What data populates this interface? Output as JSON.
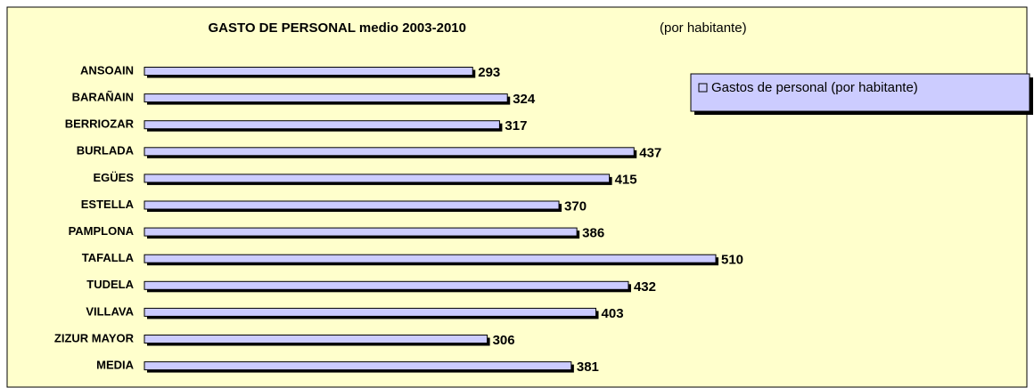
{
  "chart_data": {
    "type": "bar",
    "orientation": "horizontal",
    "title": "GASTO DE PERSONAL medio 2003-2010",
    "subtitle": "(por habitante)",
    "categories": [
      "ANSOAIN",
      "BARAÑAIN",
      "BERRIOZAR",
      "BURLADA",
      "EGÜES",
      "ESTELLA",
      "PAMPLONA",
      "TAFALLA",
      "TUDELA",
      "VILLAVA",
      "ZIZUR MAYOR",
      "MEDIA"
    ],
    "series": [
      {
        "name": "Gastos de personal  (por habitante)",
        "color": "#ccccff",
        "values": [
          293,
          324,
          317,
          437,
          415,
          370,
          386,
          510,
          432,
          403,
          306,
          381
        ]
      }
    ],
    "legend": "upper right"
  }
}
